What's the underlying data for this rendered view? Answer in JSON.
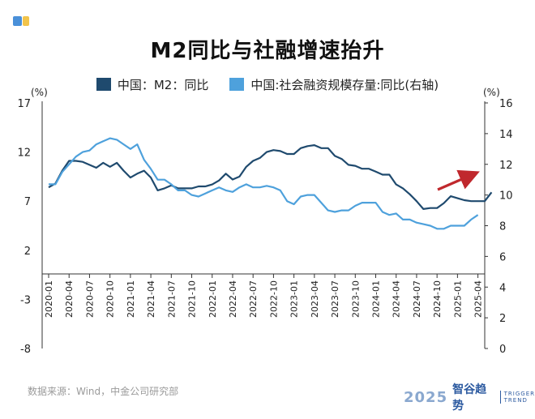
{
  "legend": {
    "m2": "中国：M2：同比",
    "tsf": "中国:社会融资规模存量:同比(右轴)"
  },
  "colors": {
    "m2": "#1f4a6e",
    "tsf": "#4ea1dc",
    "arrow": "#c0282d",
    "corner_a": "#4a90d9",
    "corner_b": "#f2c44b"
  },
  "footer": {
    "source": "数据来源：Wind，中金公司研究部"
  },
  "brand": {
    "year": "2025",
    "name": "智谷趋势",
    "en_top": "TRIGGER",
    "en_bottom": "TREND"
  },
  "chart_data": {
    "type": "line",
    "title": "M2同比与社融增速抬升",
    "left_axis": {
      "unit": "(%)",
      "min": -8,
      "max": 17,
      "ticks": [
        17,
        12,
        7,
        2,
        -3,
        -8
      ]
    },
    "right_axis": {
      "unit": "(%)",
      "min": 0,
      "max": 16,
      "ticks": [
        16,
        14,
        12,
        10,
        8,
        6,
        4,
        2,
        0
      ]
    },
    "x_ticks": [
      "2020-01",
      "2020-04",
      "2020-07",
      "2020-10",
      "2021-01",
      "2021-04",
      "2021-07",
      "2021-10",
      "2022-01",
      "2022-04",
      "2022-07",
      "2022-10",
      "2023-01",
      "2023-04",
      "2023-07",
      "2023-10",
      "2024-01",
      "2024-04",
      "2024-07",
      "2024-10",
      "2025-01",
      "2025-04"
    ],
    "series": [
      {
        "name": "中国：M2：同比",
        "axis": "left",
        "values": [
          8.4,
          8.8,
          10.1,
          11.1,
          11.1,
          11.0,
          10.7,
          10.4,
          10.9,
          10.5,
          10.9,
          10.1,
          9.4,
          9.8,
          10.1,
          9.4,
          8.1,
          8.3,
          8.6,
          8.3,
          8.3,
          8.3,
          8.5,
          8.5,
          8.7,
          9.1,
          9.8,
          9.2,
          9.5,
          10.5,
          11.1,
          11.4,
          12.0,
          12.2,
          12.1,
          11.8,
          11.8,
          12.4,
          12.6,
          12.7,
          12.4,
          12.4,
          11.6,
          11.3,
          10.7,
          10.6,
          10.3,
          10.3,
          10.0,
          9.7,
          9.7,
          8.7,
          8.3,
          7.7,
          7.0,
          6.2,
          6.3,
          6.3,
          6.8,
          7.5,
          7.3,
          7.1,
          7.0,
          7.0,
          7.0,
          7.9
        ],
        "x_start": "2020-01"
      },
      {
        "name": "中国:社会融资规模存量:同比(右轴)",
        "axis": "right",
        "values": [
          10.7,
          10.7,
          11.5,
          12.0,
          12.5,
          12.8,
          12.9,
          13.3,
          13.5,
          13.7,
          13.6,
          13.3,
          13.0,
          13.3,
          12.3,
          11.7,
          11.0,
          11.0,
          10.7,
          10.3,
          10.3,
          10.0,
          9.9,
          10.1,
          10.3,
          10.5,
          10.3,
          10.2,
          10.5,
          10.7,
          10.5,
          10.5,
          10.6,
          10.5,
          10.3,
          9.6,
          9.4,
          9.9,
          10.0,
          10.0,
          9.5,
          9.0,
          8.9,
          9.0,
          9.0,
          9.3,
          9.5,
          9.5,
          9.5,
          8.9,
          8.7,
          8.8,
          8.4,
          8.4,
          8.2,
          8.1,
          8.0,
          7.8,
          7.8,
          8.0,
          8.0,
          8.0,
          8.4,
          8.7
        ],
        "x_start": "2020-01"
      }
    ],
    "annotation": "upward red arrow"
  }
}
